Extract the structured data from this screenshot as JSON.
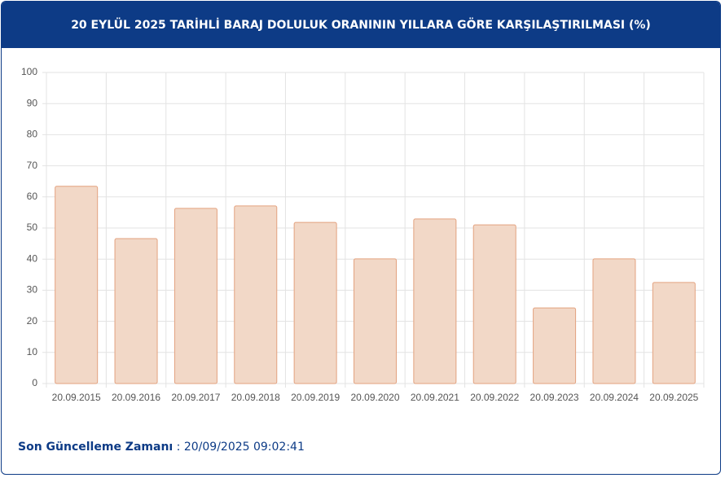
{
  "chart_data": {
    "type": "bar",
    "title": "20 EYLÜL 2025 TARİHLİ BARAJ DOLULUK ORANININ YILLARA GÖRE KARŞILAŞTIRILMASI (%)",
    "categories": [
      "20.09.2015",
      "20.09.2016",
      "20.09.2017",
      "20.09.2018",
      "20.09.2019",
      "20.09.2020",
      "20.09.2021",
      "20.09.2022",
      "20.09.2023",
      "20.09.2024",
      "20.09.2025"
    ],
    "values": [
      63.4,
      46.6,
      56.3,
      57.1,
      51.8,
      40.1,
      52.9,
      51.0,
      24.3,
      40.1,
      32.5
    ],
    "color": "#f2d8c7",
    "border_color": "#e3a27f",
    "ylim": [
      0,
      100
    ],
    "yticks": [
      0,
      10,
      20,
      30,
      40,
      50,
      60,
      70,
      80,
      90,
      100
    ],
    "grid": true
  },
  "footer": {
    "label": "Son Güncelleme Zamanı",
    "separator": ":",
    "value": "20/09/2025 09:02:41"
  }
}
